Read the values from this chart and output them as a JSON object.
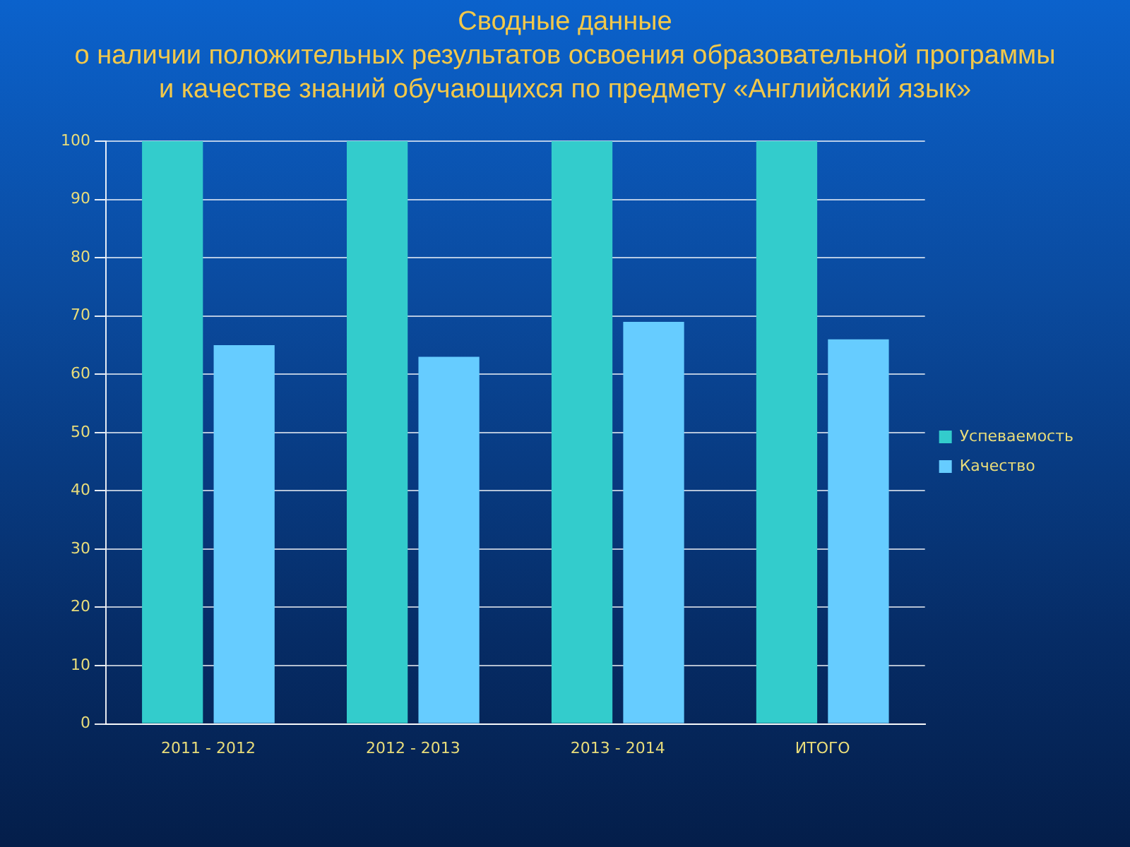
{
  "chart_data": {
    "type": "bar",
    "title": "Сводные данные",
    "subtitle": "о наличии положительных результатов освоения образовательной программы и качестве знаний обучающихся по предмету «Английский язык»",
    "categories": [
      "2011 - 2012",
      "2012 - 2013",
      "2013 - 2014",
      "ИТОГО"
    ],
    "series": [
      {
        "name": "Успеваемость",
        "color": "#33cccc",
        "values": [
          100,
          100,
          100,
          100
        ]
      },
      {
        "name": "Качество",
        "color": "#66ccff",
        "values": [
          65,
          63,
          69,
          66
        ]
      }
    ],
    "ylim": [
      0,
      100
    ],
    "yticks": [
      0,
      10,
      20,
      30,
      40,
      50,
      60,
      70,
      80,
      90,
      100
    ],
    "grid": "y",
    "legend": "right"
  }
}
